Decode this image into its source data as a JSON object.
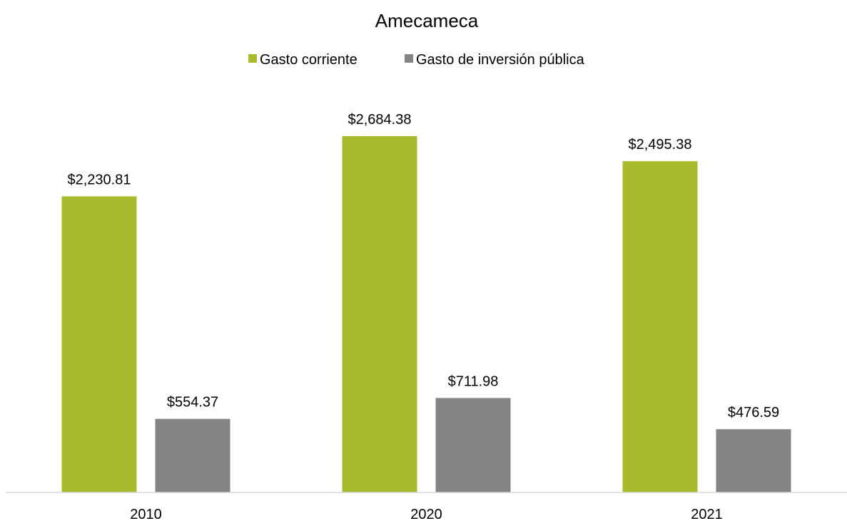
{
  "chart_data": {
    "type": "bar",
    "title": "Amecameca",
    "categories": [
      "2010",
      "2020",
      "2021"
    ],
    "series": [
      {
        "name": "Gasto corriente",
        "color": "#A9BA2C",
        "values": [
          2230.81,
          2684.38,
          2495.38
        ],
        "labels": [
          "$2,230.81",
          "$2,684.38",
          "$2,495.38"
        ]
      },
      {
        "name": "Gasto de inversión pública",
        "color": "#848484",
        "values": [
          554.37,
          711.98,
          476.59
        ],
        "labels": [
          "$554.37",
          "$711.98",
          "$476.59"
        ]
      }
    ],
    "legend_position": "top",
    "grid": false,
    "ylim": [
      0,
      3000
    ],
    "axis_color": "#D9D9D9"
  }
}
